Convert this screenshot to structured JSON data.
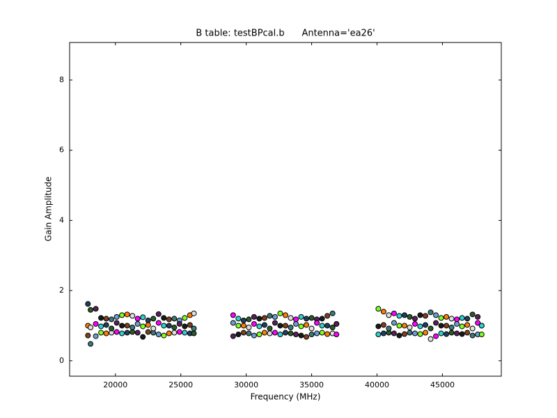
{
  "chart_data": {
    "type": "scatter",
    "title": "B table: testBPcal.b      Antenna='ea26'",
    "x_label": "Frequency (MHz)",
    "y_label": "Gain Amplitude",
    "xlim": [
      16500,
      49500
    ],
    "ylim": [
      -0.44,
      9.07
    ],
    "xticks": [
      20000,
      25000,
      30000,
      35000,
      40000,
      45000
    ],
    "yticks": [
      0,
      2,
      4,
      6,
      8
    ],
    "grid": false,
    "marker_edge_color": "#000000",
    "marker_colors": [
      "#1f3f5f",
      "#2a5a2a",
      "#5a1f5a",
      "#1a1a1a",
      "#804020",
      "#3a7a7a",
      "#6aa0d0",
      "#80ff20",
      "#ff8000",
      "#e0e0e0",
      "#ff00ff",
      "#30d0d0"
    ],
    "x": [
      17900,
      18100,
      18500,
      18900,
      19300,
      19700,
      20100,
      20500,
      20900,
      21300,
      21700,
      22100,
      22500,
      22900,
      23300,
      23700,
      24100,
      24500,
      24900,
      25300,
      25700,
      26000,
      29000,
      29400,
      29800,
      30200,
      30600,
      31000,
      31400,
      31800,
      32200,
      32600,
      33000,
      33400,
      33800,
      34200,
      34600,
      35000,
      35400,
      35800,
      36200,
      36600,
      36900,
      40100,
      40500,
      40900,
      41300,
      41700,
      42100,
      42500,
      42900,
      43300,
      43700,
      44100,
      44500,
      44900,
      45300,
      45700,
      46100,
      46500,
      46900,
      47300,
      47700,
      48000,
      17900,
      18100,
      18500,
      18900,
      19300,
      19700,
      20100,
      20500,
      20900,
      21300,
      21700,
      22100,
      22500,
      22900,
      23300,
      23700,
      24100,
      24500,
      24900,
      25300,
      25700,
      26000,
      29000,
      29400,
      29800,
      30200,
      30600,
      31000,
      31400,
      31800,
      32200,
      32600,
      33000,
      33400,
      33800,
      34200,
      34600,
      35000,
      35400,
      35800,
      36200,
      36600,
      36900,
      40100,
      40500,
      40900,
      41300,
      41700,
      42100,
      42500,
      42900,
      43300,
      43700,
      44100,
      44500,
      44900,
      45300,
      45700,
      46100,
      46500,
      46900,
      47300,
      47700,
      48000,
      17900,
      18100,
      18500,
      18900,
      19300,
      19700,
      20100,
      20500,
      20900,
      21300,
      21700,
      22100,
      22500,
      22900,
      23300,
      23700,
      24100,
      24500,
      24900,
      25300,
      25700,
      26000,
      29000,
      29400,
      29800,
      30200,
      30600,
      31000,
      31400,
      31800,
      32200,
      32600,
      33000,
      33400,
      33800,
      34200,
      34600,
      35000,
      35400,
      35800,
      36200,
      36600,
      36900,
      40100,
      40500,
      40900,
      41300,
      41700,
      42100,
      42500,
      42900,
      43300,
      43700,
      44100,
      44500,
      44900,
      45300,
      45700,
      46100,
      46500,
      46900,
      47300,
      47700,
      48000
    ],
    "values": [
      1.62,
      1.45,
      1.48,
      1.22,
      1.2,
      1.18,
      1.25,
      1.3,
      1.32,
      1.28,
      1.2,
      1.24,
      1.15,
      1.2,
      1.33,
      1.22,
      1.18,
      1.2,
      1.15,
      1.22,
      1.3,
      1.35,
      1.3,
      1.2,
      1.15,
      1.18,
      1.25,
      1.2,
      1.22,
      1.28,
      1.25,
      1.35,
      1.3,
      1.22,
      1.18,
      1.25,
      1.2,
      1.22,
      1.18,
      1.2,
      1.28,
      1.35,
      1.05,
      1.48,
      1.4,
      1.3,
      1.35,
      1.28,
      1.3,
      1.25,
      1.2,
      1.3,
      1.28,
      1.38,
      1.3,
      1.22,
      1.25,
      1.2,
      1.18,
      1.22,
      1.2,
      1.32,
      1.25,
      1.0,
      0.72,
      0.48,
      0.7,
      0.8,
      0.78,
      0.8,
      0.82,
      0.78,
      0.8,
      0.82,
      0.8,
      0.68,
      0.82,
      0.8,
      0.75,
      0.72,
      0.78,
      0.8,
      0.82,
      0.8,
      0.78,
      0.78,
      0.7,
      0.75,
      0.8,
      0.78,
      0.72,
      0.75,
      0.8,
      0.78,
      0.8,
      0.75,
      0.8,
      0.78,
      0.75,
      0.72,
      0.68,
      0.75,
      0.78,
      0.8,
      0.76,
      0.78,
      0.75,
      0.75,
      0.78,
      0.8,
      0.78,
      0.72,
      0.76,
      0.8,
      0.78,
      0.76,
      0.8,
      0.62,
      0.7,
      0.78,
      0.76,
      0.8,
      0.78,
      0.76,
      0.8,
      0.72,
      0.75,
      0.75,
      1.0,
      0.95,
      1.05,
      0.98,
      1.02,
      0.92,
      1.08,
      1.0,
      1.0,
      0.95,
      1.05,
      0.98,
      1.02,
      0.92,
      1.08,
      1.0,
      1.0,
      0.95,
      1.05,
      0.98,
      1.02,
      0.92,
      1.08,
      1.0,
      1.0,
      0.95,
      1.05,
      0.98,
      1.02,
      0.92,
      1.08,
      1.0,
      1.0,
      0.95,
      1.05,
      0.98,
      1.02,
      0.92,
      1.08,
      1.0,
      1.0,
      0.95,
      1.05,
      0.98,
      1.02,
      0.92,
      1.08,
      1.0,
      1.0,
      0.95,
      1.05,
      0.98,
      1.02,
      0.92,
      1.08,
      1.0,
      1.0,
      0.95,
      1.05,
      0.98,
      1.02,
      0.92,
      1.08,
      1.0
    ]
  }
}
